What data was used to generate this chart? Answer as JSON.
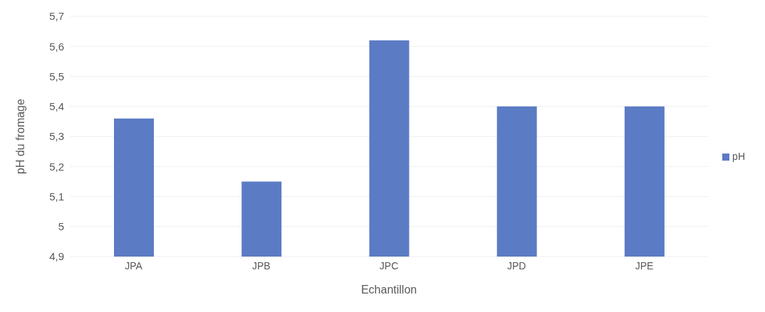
{
  "chart_data": {
    "type": "bar",
    "xlabel": "Echantillon",
    "ylabel": "pH du fromage",
    "categories": [
      "JPA",
      "JPB",
      "JPC",
      "JPD",
      "JPE"
    ],
    "series": [
      {
        "name": "pH",
        "color": "#5b7bc4",
        "values": [
          5.36,
          5.15,
          5.62,
          5.4,
          5.4
        ]
      }
    ],
    "ylim": [
      4.9,
      5.7
    ],
    "yticks": [
      {
        "value": 4.9,
        "label": "4,9"
      },
      5,
      {
        "value": 5.1,
        "label": "5,1"
      },
      {
        "value": 5.2,
        "label": "5,2"
      },
      {
        "value": 5.3,
        "label": "5,3"
      },
      {
        "value": 5.4,
        "label": "5,4"
      },
      {
        "value": 5.5,
        "label": "5,5"
      },
      {
        "value": 5.6,
        "label": "5,6"
      },
      {
        "value": 5.7,
        "label": "5,7"
      }
    ],
    "grid": "y",
    "legend": "right"
  }
}
